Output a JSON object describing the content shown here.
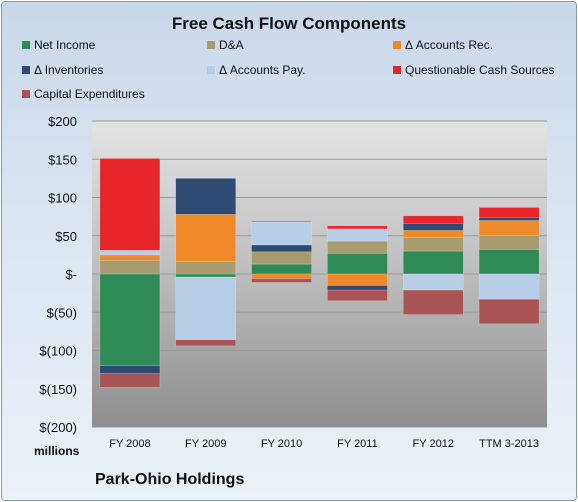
{
  "chart_data": {
    "type": "bar",
    "stacked": true,
    "title": "Free Cash Flow Components",
    "company": "Park-Ohio Holdings",
    "units_label": "millions",
    "categories": [
      "FY 2008",
      "FY 2009",
      "FY 2010",
      "FY 2011",
      "FY 2012",
      "TTM 3-2013"
    ],
    "ylim": [
      -200,
      200
    ],
    "yticks": [
      200,
      150,
      100,
      50,
      0,
      -50,
      -100,
      -150,
      -200
    ],
    "ytick_labels": [
      "$200",
      "$150",
      "$100",
      "$50",
      "$-",
      "$(50)",
      "$(100)",
      "$(150)",
      "$(200)"
    ],
    "grid": true,
    "legend_position": "top",
    "series": [
      {
        "name": "Net Income",
        "color": "#2e8b57",
        "values": [
          -120,
          -4,
          13,
          27,
          30,
          32
        ]
      },
      {
        "name": "D&A",
        "color": "#a89c6e",
        "values": [
          18,
          16,
          16,
          16,
          18,
          18
        ]
      },
      {
        "name": "Δ Accounts Rec.",
        "color": "#ee8a2a",
        "values": [
          7,
          62,
          -6,
          -15,
          9,
          20
        ]
      },
      {
        "name": "Δ Inventories",
        "color": "#2f4b74",
        "values": [
          -10,
          47,
          9,
          -6,
          9,
          4
        ]
      },
      {
        "name": "Δ Accounts Pay.",
        "color": "#b8cde6",
        "values": [
          6,
          -82,
          30,
          16,
          -21,
          -33
        ]
      },
      {
        "name": "Questionable Cash Sources",
        "color": "#e8262a",
        "values": [
          120,
          0,
          1,
          4,
          10,
          13
        ]
      },
      {
        "name": "Capital Expenditures",
        "color": "#a85456",
        "values": [
          -18,
          -8,
          -5,
          -14,
          -32,
          -32
        ]
      }
    ]
  }
}
